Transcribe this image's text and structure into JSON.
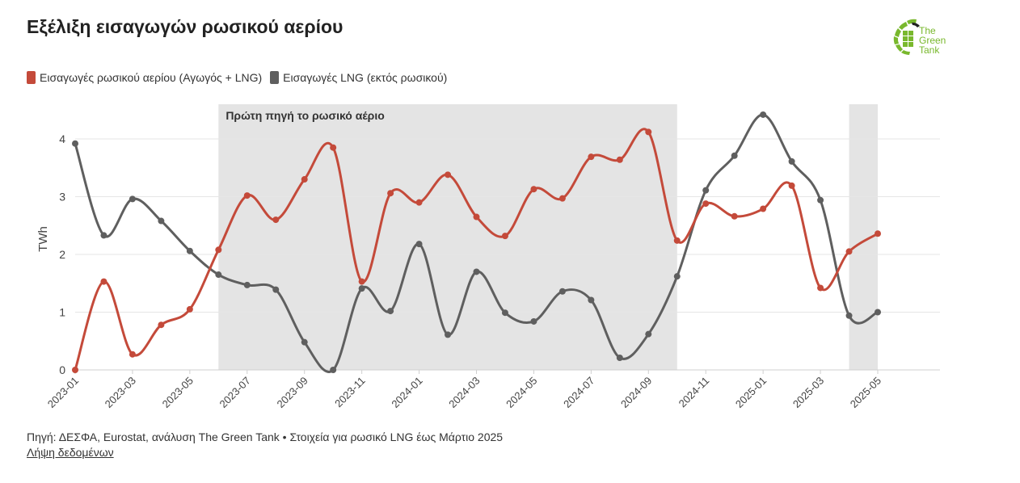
{
  "title": "Εξέλιξη εισαγωγών ρωσικού αερίου",
  "logo": {
    "line1": "The",
    "line2": "Green",
    "line3": "Tank",
    "color": "#79b82d"
  },
  "colors": {
    "russian": "#c44a3a",
    "lng": "#5f5f5f",
    "shade": "#e4e4e4",
    "grid": "#e6e6e6"
  },
  "chart_data": {
    "type": "line",
    "title": "Εξέλιξη εισαγωγών ρωσικού αερίου",
    "ylabel": "TWh",
    "xlabel": "",
    "ylim": [
      0,
      4.6
    ],
    "yticks": [
      0,
      1,
      2,
      3,
      4
    ],
    "x": [
      "2023-01",
      "2023-02",
      "2023-03",
      "2023-04",
      "2023-05",
      "2023-06",
      "2023-07",
      "2023-08",
      "2023-09",
      "2023-10",
      "2023-11",
      "2023-12",
      "2024-01",
      "2024-02",
      "2024-03",
      "2024-04",
      "2024-05",
      "2024-06",
      "2024-07",
      "2024-08",
      "2024-09",
      "2024-10",
      "2024-11",
      "2024-12",
      "2025-01",
      "2025-02",
      "2025-03",
      "2025-04",
      "2025-05"
    ],
    "xtick_labels": [
      "2023-01",
      "2023-03",
      "2023-05",
      "2023-07",
      "2023-09",
      "2023-11",
      "2024-01",
      "2024-03",
      "2024-05",
      "2024-07",
      "2024-09",
      "2024-11",
      "2025-01",
      "2025-03",
      "2025-05"
    ],
    "series": [
      {
        "name": "Εισαγωγές ρωσικού αερίου (Αγωγός + LNG)",
        "color": "#c44a3a",
        "values": [
          0,
          1.53,
          0.27,
          0.78,
          1.05,
          2.08,
          3.02,
          2.6,
          3.3,
          3.85,
          1.53,
          3.06,
          2.9,
          3.38,
          2.65,
          2.32,
          3.13,
          2.97,
          3.69,
          3.64,
          4.12,
          2.24,
          2.88,
          2.66,
          2.79,
          3.19,
          1.42,
          2.05,
          2.36
        ]
      },
      {
        "name": "Εισαγωγές LNG (εκτός ρωσικού)",
        "color": "#5f5f5f",
        "values": [
          3.92,
          2.33,
          2.96,
          2.58,
          2.06,
          1.65,
          1.47,
          1.39,
          0.48,
          0.0,
          1.41,
          1.02,
          2.18,
          0.61,
          1.7,
          0.99,
          0.84,
          1.36,
          1.21,
          0.21,
          0.62,
          1.62,
          3.11,
          3.71,
          4.42,
          3.61,
          2.94,
          0.94,
          1.0
        ]
      }
    ],
    "shaded_ranges": [
      {
        "from": "2023-06",
        "to": "2024-10",
        "label": "Πρώτη πηγή το ρωσικό αέριο"
      },
      {
        "from": "2025-04",
        "to": "2025-05",
        "label": ""
      }
    ],
    "grid": true,
    "legend": "top-left"
  },
  "footer": {
    "source": "Πηγή: ΔΕΣΦΑ, Eurostat, ανάλυση The Green Tank • Στοιχεία για ρωσικό LNG έως Μάρτιο 2025",
    "download": "Λήψη δεδομένων"
  }
}
